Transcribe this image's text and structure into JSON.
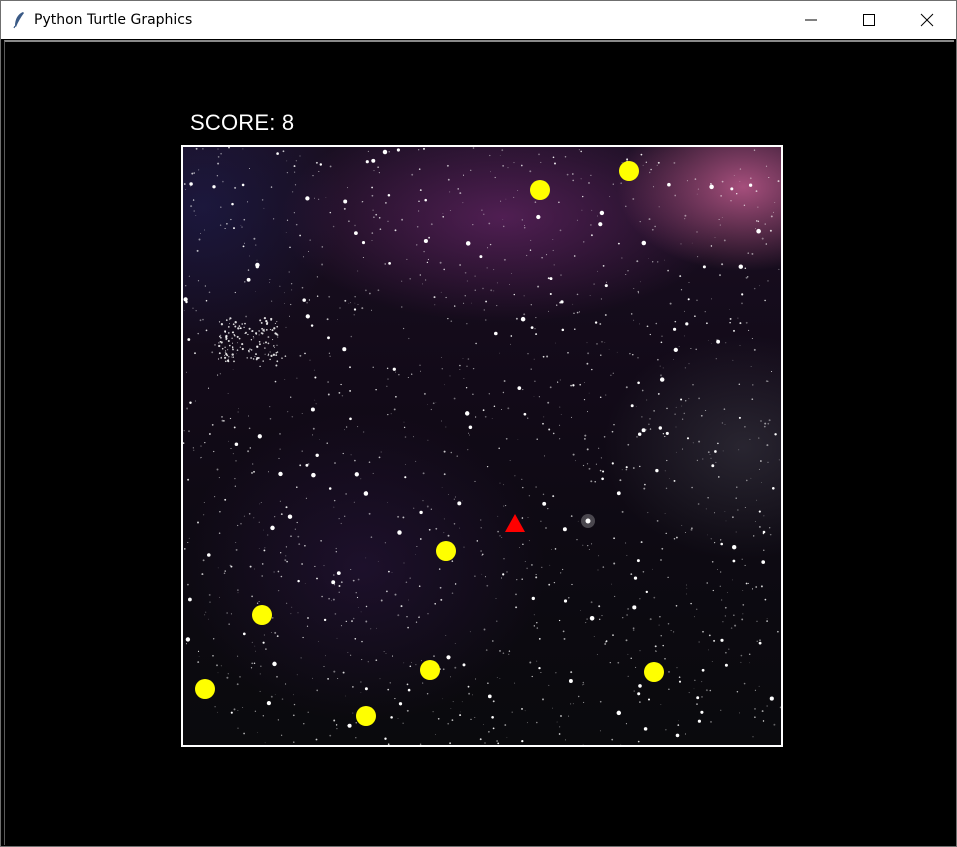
{
  "window": {
    "title": "Python Turtle Graphics",
    "icon": "turtle-feather-icon"
  },
  "controls": {
    "minimize_icon": "minimize-icon",
    "maximize_icon": "maximize-icon",
    "close_icon": "close-icon"
  },
  "game": {
    "score_text": "SCORE: 8",
    "colors": {
      "background": "#000000",
      "border": "#ffffff",
      "food": "#ffff00",
      "player": "#ff0000"
    }
  }
}
